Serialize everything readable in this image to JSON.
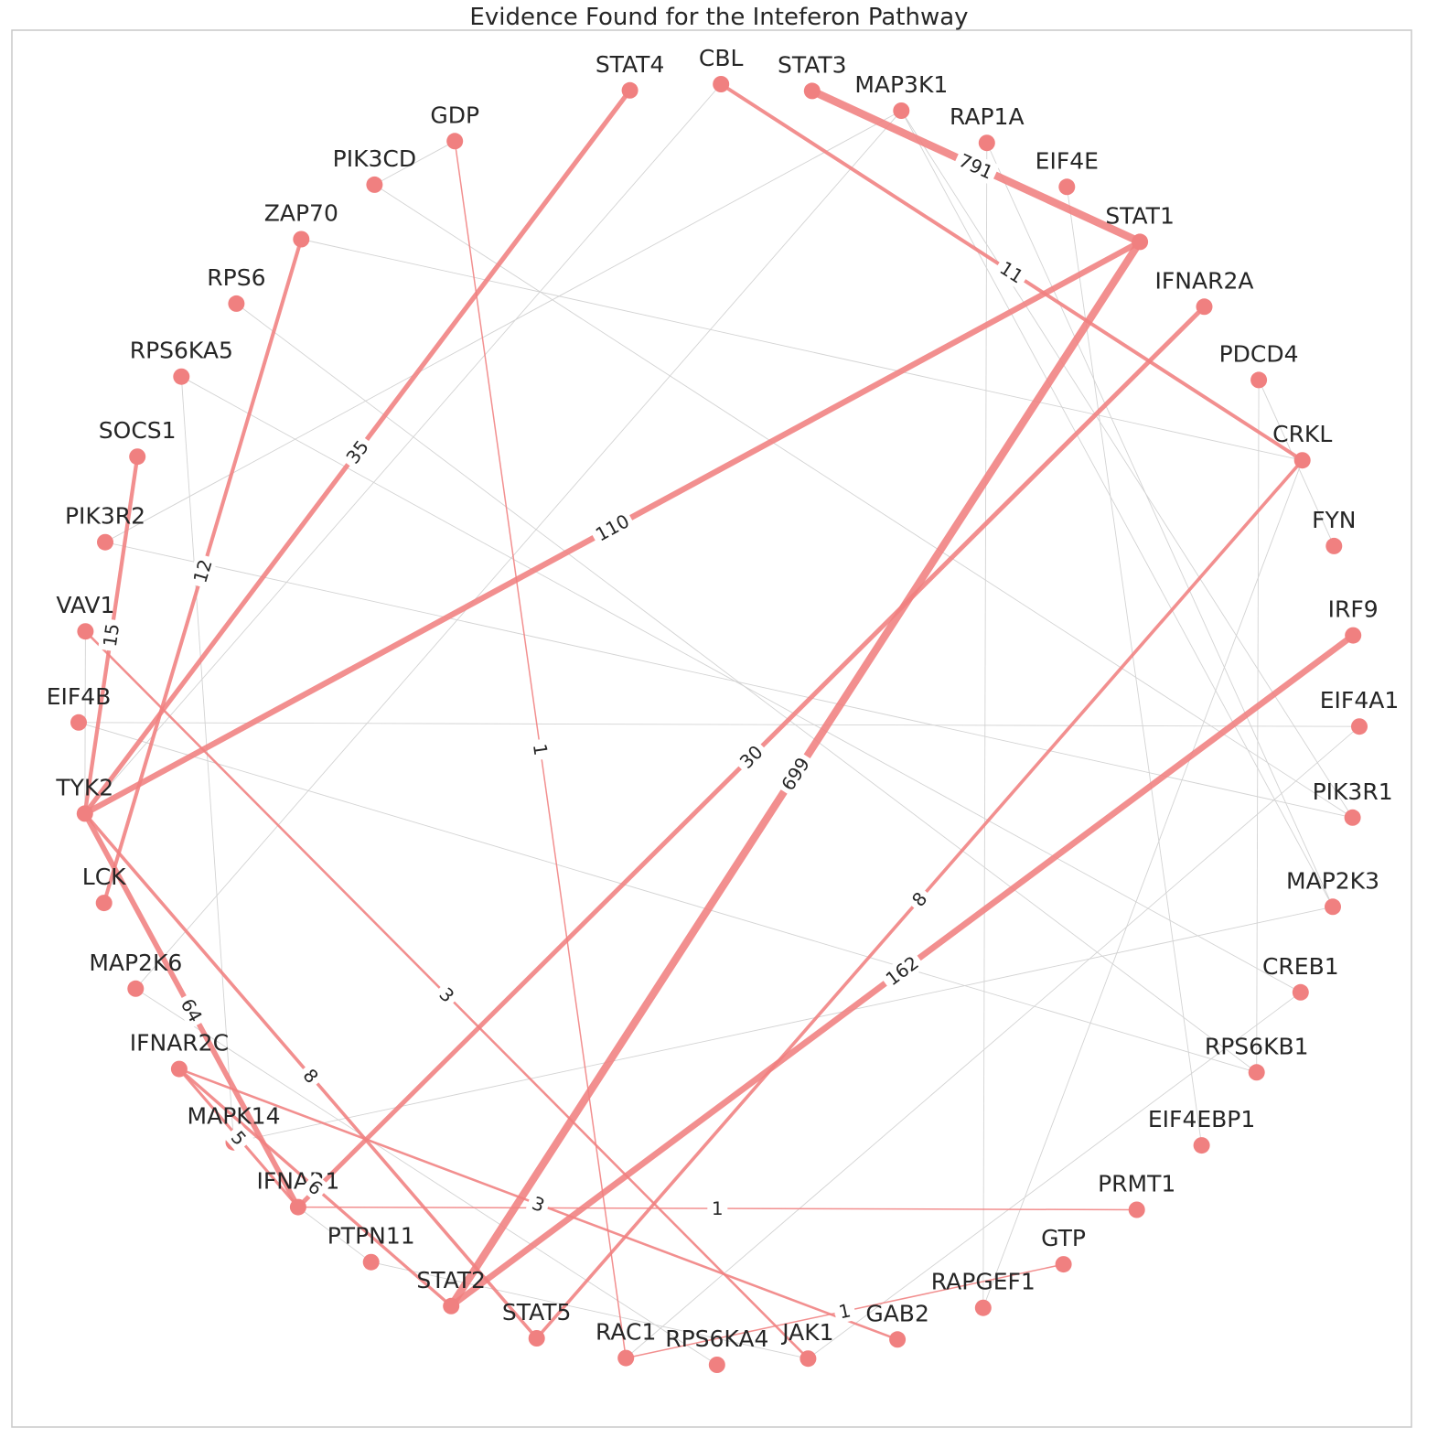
{
  "title": "Evidence Found for the Inteferon Pathway",
  "colors": {
    "node": "#f08080",
    "strong_edge": "#f08080",
    "weak_edge": "#d3d3d3",
    "frame": "#c8c8c8",
    "text": "#262626"
  },
  "nodes": [
    "STAT4",
    "CBL",
    "STAT3",
    "MAP3K1",
    "RAP1A",
    "EIF4E",
    "STAT1",
    "IFNAR2A",
    "PDCD4",
    "CRKL",
    "FYN",
    "IRF9",
    "EIF4A1",
    "PIK3R1",
    "MAP2K3",
    "CREB1",
    "RPS6KB1",
    "EIF4EBP1",
    "PRMT1",
    "GTP",
    "RAPGEF1",
    "GAB2",
    "JAK1",
    "RPS6KA4",
    "RAC1",
    "STAT5",
    "STAT2",
    "PTPN11",
    "IFNAR1",
    "MAPK14",
    "IFNAR2C",
    "MAP2K6",
    "LCK",
    "TYK2",
    "EIF4B",
    "VAV1",
    "PIK3R2",
    "SOCS1",
    "RPS6KA5",
    "RPS6",
    "ZAP70",
    "PIK3CD",
    "GDP"
  ],
  "edges": [
    {
      "source": "STAT3",
      "target": "STAT1",
      "weight": 791,
      "label": "791"
    },
    {
      "source": "STAT1",
      "target": "STAT2",
      "weight": 699,
      "label": "699"
    },
    {
      "source": "IRF9",
      "target": "STAT2",
      "weight": 162,
      "label": "162"
    },
    {
      "source": "STAT1",
      "target": "TYK2",
      "weight": 110,
      "label": "110"
    },
    {
      "source": "STAT4",
      "target": "TYK2",
      "weight": 35,
      "label": "35"
    },
    {
      "source": "TYK2",
      "target": "IFNAR1",
      "weight": 64,
      "label": "64"
    },
    {
      "source": "IFNAR2A",
      "target": "IFNAR1",
      "weight": 30,
      "label": "30"
    },
    {
      "source": "ZAP70",
      "target": "LCK",
      "weight": 12,
      "label": "12"
    },
    {
      "source": "SOCS1",
      "target": "TYK2",
      "weight": 15,
      "label": "15"
    },
    {
      "source": "CBL",
      "target": "CRKL",
      "weight": 11,
      "label": "11"
    },
    {
      "source": "TYK2",
      "target": "STAT5",
      "weight": 8,
      "label": "8"
    },
    {
      "source": "CRKL",
      "target": "STAT5",
      "weight": 8,
      "label": "8"
    },
    {
      "source": "IFNAR2C",
      "target": "STAT2",
      "weight": 6,
      "label": "6"
    },
    {
      "source": "IFNAR2C",
      "target": "IFNAR1",
      "weight": 5,
      "label": "5"
    },
    {
      "source": "VAV1",
      "target": "JAK1",
      "weight": 3,
      "label": "3"
    },
    {
      "source": "IFNAR2C",
      "target": "GAB2",
      "weight": 3,
      "label": "3"
    },
    {
      "source": "GDP",
      "target": "RAC1",
      "weight": 1,
      "label": "1"
    },
    {
      "source": "IFNAR1",
      "target": "PRMT1",
      "weight": 1,
      "label": "1"
    },
    {
      "source": "RAC1",
      "target": "GTP",
      "weight": 1,
      "label": "1"
    },
    {
      "source": "CBL",
      "target": "TYK2",
      "weight": 0
    },
    {
      "source": "MAP3K1",
      "target": "MAP2K6",
      "weight": 0
    },
    {
      "source": "MAP3K1",
      "target": "MAP2K3",
      "weight": 0
    },
    {
      "source": "MAP3K1",
      "target": "PIK3R2",
      "weight": 0
    },
    {
      "source": "RAP1A",
      "target": "RAPGEF1",
      "weight": 0
    },
    {
      "source": "EIF4E",
      "target": "EIF4EBP1",
      "weight": 0
    },
    {
      "source": "PIK3CD",
      "target": "PIK3R1",
      "weight": 0
    },
    {
      "source": "ZAP70",
      "target": "CRKL",
      "weight": 0
    },
    {
      "source": "RPS6",
      "target": "RPS6KB1",
      "weight": 0
    },
    {
      "source": "RPS6KA5",
      "target": "CREB1",
      "weight": 0
    },
    {
      "source": "RPS6KA5",
      "target": "MAPK14",
      "weight": 0
    },
    {
      "source": "PIK3R2",
      "target": "PIK3R1",
      "weight": 0
    },
    {
      "source": "EIF4B",
      "target": "EIF4A1",
      "weight": 0
    },
    {
      "source": "EIF4B",
      "target": "RPS6KB1",
      "weight": 0
    },
    {
      "source": "PDCD4",
      "target": "RPS6KB1",
      "weight": 0
    },
    {
      "source": "FYN",
      "target": "PDCD4",
      "weight": 0
    },
    {
      "source": "CRKL",
      "target": "RAPGEF1",
      "weight": 0
    },
    {
      "source": "MAPK14",
      "target": "MAP2K3",
      "weight": 0
    },
    {
      "source": "CREB1",
      "target": "JAK1",
      "weight": 0
    },
    {
      "source": "MAP2K6",
      "target": "RPS6KA4",
      "weight": 0
    },
    {
      "source": "IFNAR1",
      "target": "PTPN11",
      "weight": 0
    },
    {
      "source": "PTPN11",
      "target": "JAK1",
      "weight": 0
    },
    {
      "source": "RAC1",
      "target": "EIF4A1",
      "weight": 0
    },
    {
      "source": "TYK2",
      "target": "VAV1",
      "weight": 0
    },
    {
      "source": "MAP3K1",
      "target": "PIK3R1",
      "weight": 0
    },
    {
      "source": "RAP1A",
      "target": "MAP2K3",
      "weight": 0
    },
    {
      "source": "GDP",
      "target": "PIK3CD",
      "weight": 0
    }
  ]
}
